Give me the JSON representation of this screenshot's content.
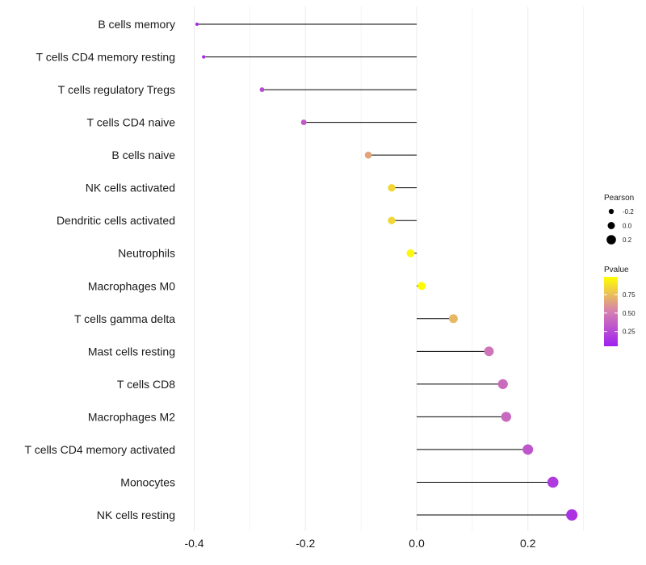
{
  "chart_data": {
    "type": "lollipop",
    "title": "",
    "xlabel": "",
    "ylabel": "",
    "xlim": [
      -0.4,
      0.3
    ],
    "xticks": [
      -0.4,
      -0.2,
      0.0,
      0.2
    ],
    "xtick_labels": [
      "-0.4",
      "-0.2",
      "0.0",
      "0.2"
    ],
    "grid": true,
    "categories": [
      "B cells memory",
      "T cells CD4 memory resting",
      "T cells regulatory  Tregs",
      "T cells CD4 naive",
      "B cells naive",
      "NK cells activated",
      "Dendritic cells activated",
      "Neutrophils",
      "Macrophages M0",
      "T cells gamma delta",
      "Mast cells resting",
      "T cells CD8",
      "Macrophages M2",
      "T cells CD4 memory activated",
      "Monocytes",
      "NK cells resting"
    ],
    "pearson": [
      -0.395,
      -0.383,
      -0.278,
      -0.203,
      -0.087,
      -0.045,
      -0.045,
      -0.011,
      0.009,
      0.066,
      0.13,
      0.155,
      0.161,
      0.2,
      0.245,
      0.279
    ],
    "pvalue": [
      0.05,
      0.06,
      0.22,
      0.3,
      0.65,
      0.84,
      0.84,
      0.97,
      0.99,
      0.72,
      0.44,
      0.4,
      0.38,
      0.28,
      0.14,
      0.1
    ],
    "legend": {
      "size_title": "Pearson",
      "size_values": [
        -0.2,
        0.0,
        0.2
      ],
      "size_labels": [
        "-0.2",
        "0.0",
        "0.2"
      ],
      "color_title": "Pvalue",
      "color_ticks": [
        0.75,
        0.5,
        0.25
      ],
      "color_tick_labels": [
        "0.75",
        "0.50",
        "0.25"
      ],
      "color_low": "#a020f0",
      "color_high": "#ffff00",
      "placement": "right"
    },
    "colors": {
      "segment": "#000000",
      "grid": "#ebebeb"
    }
  }
}
